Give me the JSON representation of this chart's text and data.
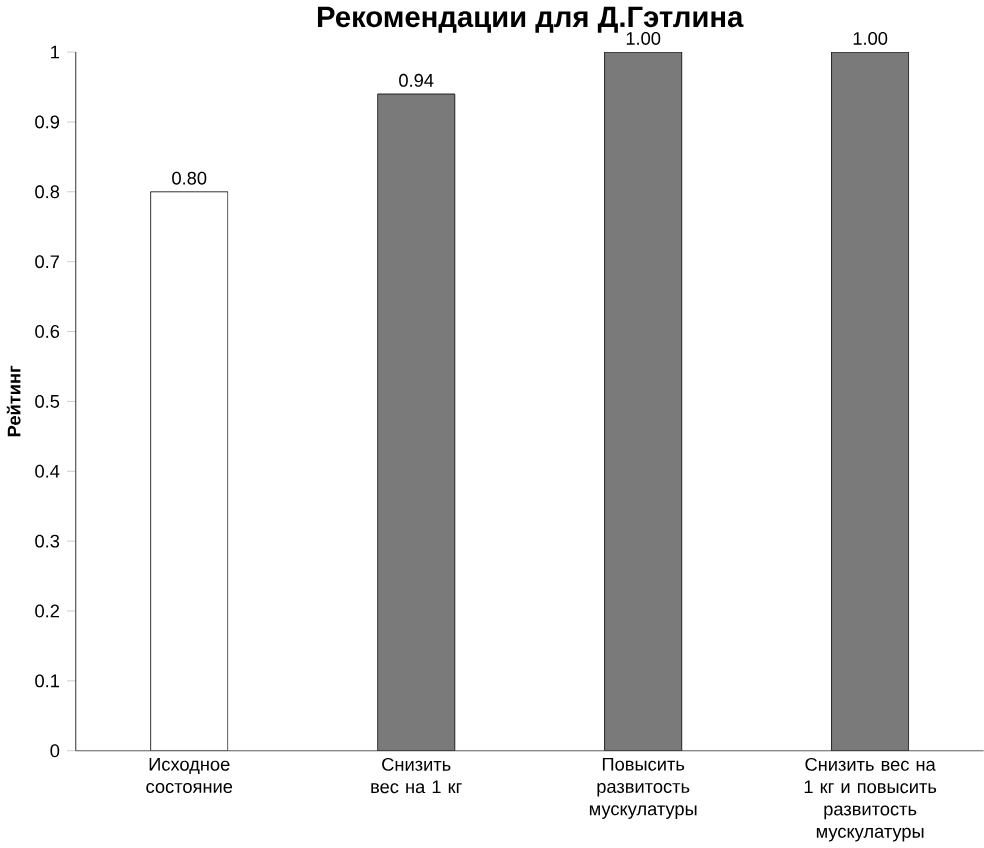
{
  "chart_data": {
    "type": "bar",
    "title": "Рекомендации для Д.Гэтлина",
    "ylabel": "Рейтинг",
    "categories": [
      "Исходное состояние",
      "Снизить вес на 1 кг",
      "Повысить развитость мускулатуры",
      "Снизить вес на 1 кг и повысить развитость мускулатуры"
    ],
    "values": [
      0.8,
      0.94,
      1.0,
      1.0
    ],
    "value_labels": [
      "0.80",
      "0.94",
      "1.00",
      "1.00"
    ],
    "colors": [
      "#ffffff",
      "#7a7a7a",
      "#7a7a7a",
      "#7a7a7a"
    ],
    "ylim": [
      0,
      1
    ],
    "yticks": [
      0,
      0.1,
      0.2,
      0.3,
      0.4,
      0.5,
      0.6,
      0.7,
      0.8,
      0.9,
      1
    ]
  }
}
